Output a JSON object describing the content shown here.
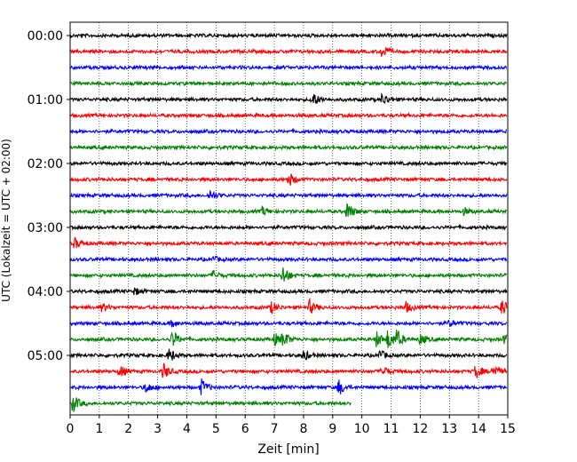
{
  "chart_data": {
    "type": "line",
    "title": "",
    "xlabel": "Zeit  [min]",
    "ylabel": "UTC (Lokalzeit = UTC + 02:00)",
    "xlim": [
      0,
      15
    ],
    "xticks": [
      "0",
      "1",
      "2",
      "3",
      "4",
      "5",
      "6",
      "7",
      "8",
      "9",
      "10",
      "11",
      "12",
      "13",
      "14",
      "15"
    ],
    "yticks": [
      "00:00",
      "01:00",
      "02:00",
      "03:00",
      "04:00",
      "05:00"
    ],
    "grid": "vertical dotted",
    "trace_colors": [
      "#000000",
      "#ff0000",
      "#0000ff",
      "#008000"
    ],
    "traces_count": 24,
    "trace_start_hour": 0,
    "trace_interval_minutes": 15,
    "last_trace_end_minute": 9.65,
    "events": [
      {
        "trace": 1,
        "minute": 10.7,
        "amp": 8
      },
      {
        "trace": 4,
        "minute": 8.3,
        "amp": 9
      },
      {
        "trace": 4,
        "minute": 10.7,
        "amp": 7
      },
      {
        "trace": 9,
        "minute": 7.5,
        "amp": 8
      },
      {
        "trace": 10,
        "minute": 4.8,
        "amp": 6
      },
      {
        "trace": 11,
        "minute": 6.6,
        "amp": 5
      },
      {
        "trace": 11,
        "minute": 9.5,
        "amp": 11
      },
      {
        "trace": 11,
        "minute": 13.5,
        "amp": 4
      },
      {
        "trace": 13,
        "minute": 0.15,
        "amp": 6
      },
      {
        "trace": 14,
        "minute": 4.9,
        "amp": 3
      },
      {
        "trace": 15,
        "minute": 4.9,
        "amp": 5
      },
      {
        "trace": 15,
        "minute": 7.3,
        "amp": 11
      },
      {
        "trace": 16,
        "minute": 2.2,
        "amp": 4
      },
      {
        "trace": 17,
        "minute": 1.1,
        "amp": 5
      },
      {
        "trace": 17,
        "minute": 6.9,
        "amp": 6
      },
      {
        "trace": 17,
        "minute": 8.2,
        "amp": 8
      },
      {
        "trace": 17,
        "minute": 11.5,
        "amp": 6
      },
      {
        "trace": 17,
        "minute": 14.8,
        "amp": 9
      },
      {
        "trace": 18,
        "minute": 3.5,
        "amp": 4
      },
      {
        "trace": 18,
        "minute": 13.0,
        "amp": 4
      },
      {
        "trace": 19,
        "minute": 3.5,
        "amp": 10
      },
      {
        "trace": 19,
        "minute": 7.0,
        "amp": 7
      },
      {
        "trace": 19,
        "minute": 7.3,
        "amp": 9
      },
      {
        "trace": 19,
        "minute": 10.5,
        "amp": 9
      },
      {
        "trace": 19,
        "minute": 10.9,
        "amp": 11
      },
      {
        "trace": 19,
        "minute": 11.2,
        "amp": 9
      },
      {
        "trace": 19,
        "minute": 12.0,
        "amp": 6
      },
      {
        "trace": 19,
        "minute": 14.9,
        "amp": 7
      },
      {
        "trace": 20,
        "minute": 3.4,
        "amp": 8
      },
      {
        "trace": 20,
        "minute": 8.0,
        "amp": 6
      },
      {
        "trace": 20,
        "minute": 10.6,
        "amp": 6
      },
      {
        "trace": 21,
        "minute": 1.7,
        "amp": 7
      },
      {
        "trace": 21,
        "minute": 3.2,
        "amp": 9
      },
      {
        "trace": 21,
        "minute": 10.7,
        "amp": 7
      },
      {
        "trace": 21,
        "minute": 13.9,
        "amp": 8
      },
      {
        "trace": 21,
        "minute": 14.5,
        "amp": 8
      },
      {
        "trace": 22,
        "minute": 2.6,
        "amp": 6
      },
      {
        "trace": 22,
        "minute": 4.5,
        "amp": 9
      },
      {
        "trace": 22,
        "minute": 9.2,
        "amp": 9
      },
      {
        "trace": 23,
        "minute": 0.1,
        "amp": 10
      }
    ]
  }
}
